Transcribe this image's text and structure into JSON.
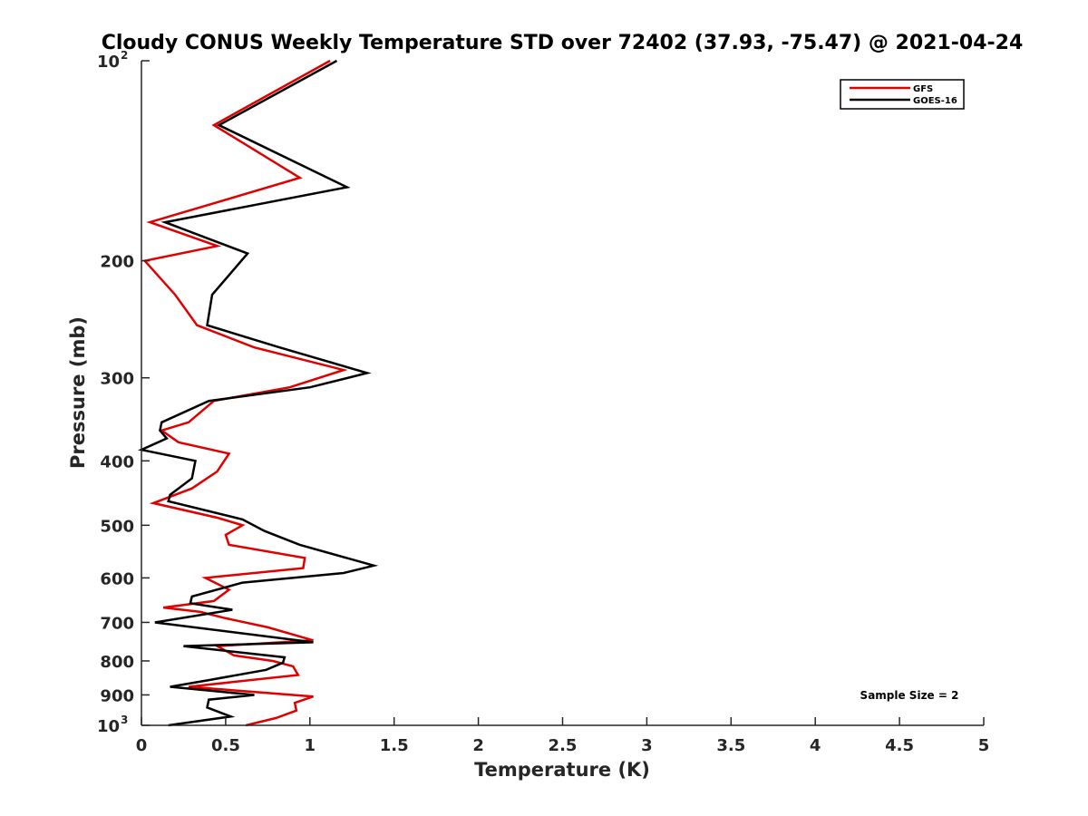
{
  "chart_data": {
    "type": "line",
    "title": "Cloudy CONUS Weekly Temperature STD over 72402 (37.93, -75.47) @ 2021-04-24",
    "xlabel": "Temperature (K)",
    "ylabel": "Pressure (mb)",
    "xlim": [
      0,
      5
    ],
    "ylim": [
      100,
      1000
    ],
    "y_scale": "log",
    "y_reversed": true,
    "grid": false,
    "legend_position": "top-right",
    "x_ticks": [
      "0",
      "0.5",
      "1",
      "1.5",
      "2",
      "2.5",
      "3",
      "3.5",
      "4",
      "4.5",
      "5"
    ],
    "y_ticks": [
      {
        "value": 100,
        "base": "10",
        "exp": "2"
      },
      {
        "value": 200,
        "label": "200"
      },
      {
        "value": 300,
        "label": "300"
      },
      {
        "value": 400,
        "label": "400"
      },
      {
        "value": 500,
        "label": "500"
      },
      {
        "value": 600,
        "label": "600"
      },
      {
        "value": 700,
        "label": "700"
      },
      {
        "value": 800,
        "label": "800"
      },
      {
        "value": 900,
        "label": "900"
      },
      {
        "value": 1000,
        "base": "10",
        "exp": "3"
      }
    ],
    "series": [
      {
        "name": "GFS",
        "color": "#e00000",
        "points": [
          [
            1.12,
            100
          ],
          [
            0.43,
            125
          ],
          [
            0.94,
            150
          ],
          [
            0.05,
            175
          ],
          [
            0.45,
            190
          ],
          [
            0.02,
            200
          ],
          [
            0.2,
            225
          ],
          [
            0.33,
            250
          ],
          [
            0.67,
            270
          ],
          [
            1.2,
            292
          ],
          [
            0.88,
            310
          ],
          [
            0.43,
            325
          ],
          [
            0.28,
            350
          ],
          [
            0.12,
            360
          ],
          [
            0.22,
            375
          ],
          [
            0.52,
            390
          ],
          [
            0.45,
            415
          ],
          [
            0.3,
            440
          ],
          [
            0.07,
            463
          ],
          [
            0.45,
            487
          ],
          [
            0.6,
            500
          ],
          [
            0.5,
            517
          ],
          [
            0.52,
            535
          ],
          [
            0.97,
            560
          ],
          [
            0.96,
            580
          ],
          [
            0.38,
            600
          ],
          [
            0.52,
            625
          ],
          [
            0.43,
            650
          ],
          [
            0.13,
            665
          ],
          [
            0.35,
            675
          ],
          [
            0.5,
            690
          ],
          [
            0.75,
            712
          ],
          [
            1.02,
            745
          ],
          [
            0.45,
            760
          ],
          [
            0.55,
            785
          ],
          [
            0.78,
            800
          ],
          [
            0.9,
            815
          ],
          [
            0.93,
            840
          ],
          [
            0.28,
            875
          ],
          [
            1.02,
            905
          ],
          [
            0.91,
            925
          ],
          [
            0.92,
            950
          ],
          [
            0.8,
            975
          ],
          [
            0.62,
            1000
          ]
        ]
      },
      {
        "name": "GOES-16",
        "color": "#000000",
        "points": [
          [
            1.16,
            100
          ],
          [
            0.46,
            125
          ],
          [
            1.22,
            155
          ],
          [
            0.14,
            175
          ],
          [
            0.63,
            195
          ],
          [
            0.42,
            225
          ],
          [
            0.39,
            250
          ],
          [
            0.82,
            270
          ],
          [
            1.34,
            295
          ],
          [
            1.0,
            310
          ],
          [
            0.4,
            325
          ],
          [
            0.12,
            350
          ],
          [
            0.11,
            360
          ],
          [
            0.15,
            370
          ],
          [
            0.0,
            385
          ],
          [
            0.32,
            400
          ],
          [
            0.3,
            425
          ],
          [
            0.17,
            450
          ],
          [
            0.16,
            460
          ],
          [
            0.6,
            490
          ],
          [
            0.73,
            510
          ],
          [
            0.94,
            535
          ],
          [
            1.38,
            575
          ],
          [
            1.2,
            590
          ],
          [
            0.6,
            610
          ],
          [
            0.3,
            640
          ],
          [
            0.29,
            655
          ],
          [
            0.54,
            670
          ],
          [
            0.08,
            700
          ],
          [
            1.02,
            750
          ],
          [
            0.25,
            760
          ],
          [
            0.85,
            790
          ],
          [
            0.84,
            805
          ],
          [
            0.74,
            825
          ],
          [
            0.4,
            855
          ],
          [
            0.17,
            875
          ],
          [
            0.67,
            900
          ],
          [
            0.4,
            915
          ],
          [
            0.39,
            940
          ],
          [
            0.53,
            970
          ],
          [
            0.16,
            1000
          ]
        ]
      }
    ],
    "annotations": [
      "Sample Size = 2"
    ]
  }
}
